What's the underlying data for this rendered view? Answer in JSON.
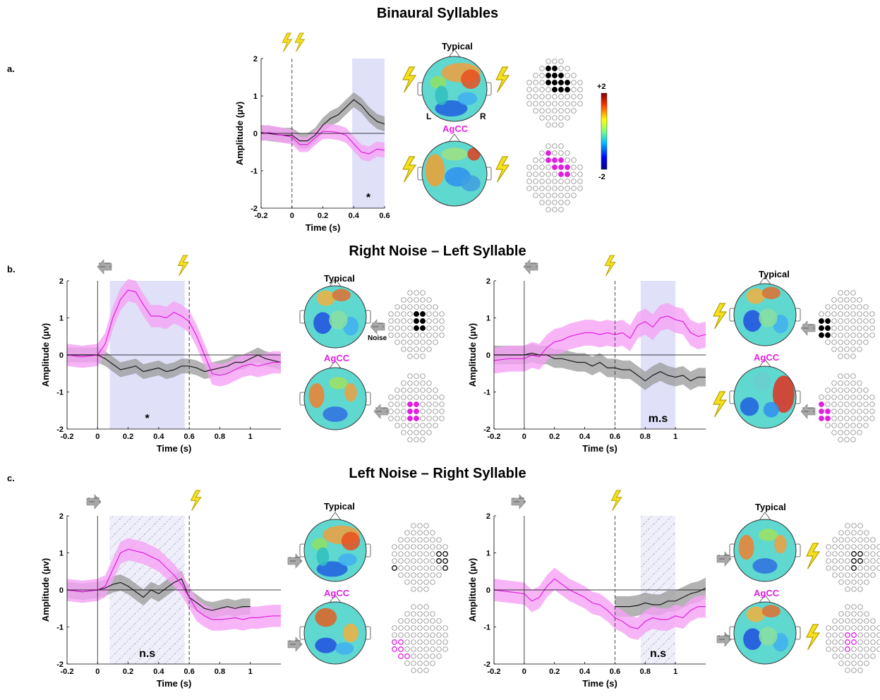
{
  "figure": {
    "section_titles": {
      "a": "Binaural Syllables",
      "b": "Right Noise – Left Syllable",
      "c": "Left Noise – Right Syllable"
    },
    "panel_labels": {
      "a": "a.",
      "b": "b.",
      "c": "c."
    },
    "typical_label": "Typical",
    "agcc_label": "AgCC",
    "left_label": "L",
    "right_label": "R",
    "noise_label": "Noise",
    "colorbar": {
      "max_label": "+2",
      "min_label": "-2"
    },
    "colors": {
      "typical": "#1a1a1a",
      "typical_band": "#9a9a9a",
      "agcc": "#e020e0",
      "agcc_band": "#f5a3f5",
      "window": "#d8d8f8",
      "lightning": "#f5e020"
    }
  },
  "chart_data": [
    {
      "id": "a",
      "type": "line",
      "xlabel": "Time (s)",
      "ylabel": "Amplitude (µv)",
      "xlim": [
        -0.2,
        0.6
      ],
      "ylim": [
        -2,
        2
      ],
      "xticks": [
        "-0.2",
        "0",
        "0.2",
        "0.4",
        "0.6"
      ],
      "yticks": [
        "-2",
        "-1",
        "0",
        "1",
        "2"
      ],
      "x_tick_values": [
        -0.2,
        0,
        0.2,
        0.4,
        0.6
      ],
      "y_tick_values": [
        -2,
        -1,
        0,
        1,
        2
      ],
      "window": [
        0.39,
        0.6
      ],
      "window_style": "solid",
      "significance": "*",
      "onset_lines": [
        {
          "x": 0,
          "style": "dashed"
        }
      ],
      "series": [
        {
          "name": "Typical",
          "x": [
            -0.2,
            -0.15,
            -0.1,
            -0.05,
            0,
            0.05,
            0.1,
            0.15,
            0.2,
            0.25,
            0.3,
            0.35,
            0.4,
            0.45,
            0.5,
            0.55,
            0.6
          ],
          "y": [
            0.02,
            0.0,
            -0.03,
            -0.05,
            -0.05,
            -0.2,
            -0.2,
            -0.05,
            0.22,
            0.4,
            0.5,
            0.7,
            0.9,
            0.75,
            0.5,
            0.32,
            0.25
          ],
          "band": 0.2
        },
        {
          "name": "AgCC",
          "x": [
            -0.2,
            -0.15,
            -0.1,
            -0.05,
            0,
            0.05,
            0.1,
            0.15,
            0.2,
            0.25,
            0.3,
            0.35,
            0.4,
            0.45,
            0.5,
            0.55,
            0.6
          ],
          "y": [
            0.0,
            0.02,
            -0.02,
            -0.06,
            -0.1,
            -0.3,
            -0.3,
            -0.12,
            0.05,
            0.05,
            0.02,
            -0.05,
            -0.28,
            -0.5,
            -0.55,
            -0.42,
            -0.45
          ],
          "band": 0.2
        }
      ]
    },
    {
      "id": "b-left",
      "type": "line",
      "xlabel": "Time (s)",
      "ylabel": "Amplitude (µv)",
      "xlim": [
        -0.2,
        1.2
      ],
      "ylim": [
        -2,
        2
      ],
      "xticks": [
        "-0.2",
        "0",
        "0.2",
        "0.4",
        "0.6",
        "0.8",
        "1"
      ],
      "yticks": [
        "-2",
        "-1",
        "0",
        "1",
        "2"
      ],
      "x_tick_values": [
        -0.2,
        0,
        0.2,
        0.4,
        0.6,
        0.8,
        1.0
      ],
      "y_tick_values": [
        -2,
        -1,
        0,
        1,
        2
      ],
      "window": [
        0.08,
        0.57
      ],
      "window_style": "solid",
      "significance": "*",
      "onset_lines": [
        {
          "x": 0,
          "style": "solid"
        },
        {
          "x": 0.6,
          "style": "dashed"
        }
      ],
      "series": [
        {
          "name": "Typical",
          "x": [
            -0.2,
            -0.1,
            0,
            0.05,
            0.1,
            0.15,
            0.2,
            0.25,
            0.3,
            0.35,
            0.4,
            0.45,
            0.5,
            0.55,
            0.6,
            0.65,
            0.7,
            0.75,
            0.8,
            0.85,
            0.9,
            0.95,
            1.0,
            1.05,
            1.1,
            1.15,
            1.2
          ],
          "y": [
            0.0,
            0.0,
            0.0,
            -0.1,
            -0.25,
            -0.4,
            -0.35,
            -0.3,
            -0.45,
            -0.4,
            -0.35,
            -0.45,
            -0.4,
            -0.3,
            -0.3,
            -0.35,
            -0.45,
            -0.4,
            -0.35,
            -0.3,
            -0.2,
            -0.2,
            -0.1,
            0.0,
            -0.1,
            -0.15,
            -0.2
          ],
          "band": 0.2
        },
        {
          "name": "AgCC",
          "x": [
            -0.2,
            -0.1,
            0,
            0.05,
            0.1,
            0.15,
            0.2,
            0.25,
            0.3,
            0.35,
            0.4,
            0.45,
            0.5,
            0.55,
            0.6,
            0.65,
            0.7,
            0.75,
            0.8,
            0.85,
            0.9,
            0.95,
            1.0,
            1.05,
            1.1,
            1.15,
            1.2
          ],
          "y": [
            0.0,
            -0.05,
            0.0,
            0.3,
            1.0,
            1.5,
            1.75,
            1.7,
            1.35,
            1.05,
            1.05,
            1.0,
            1.15,
            1.05,
            0.9,
            0.5,
            0.0,
            -0.5,
            -0.55,
            -0.5,
            -0.4,
            -0.3,
            -0.25,
            -0.3,
            -0.25,
            -0.2,
            -0.2
          ],
          "band": 0.3
        }
      ]
    },
    {
      "id": "b-right",
      "type": "line",
      "xlabel": "Time (s)",
      "ylabel": "Amplitude (µv)",
      "xlim": [
        -0.2,
        1.2
      ],
      "ylim": [
        -2,
        2
      ],
      "xticks": [
        "-0.2",
        "0",
        "0.2",
        "0.4",
        "0.6",
        "0.8",
        "1"
      ],
      "yticks": [
        "-2",
        "-1",
        "0",
        "1",
        "2"
      ],
      "x_tick_values": [
        -0.2,
        0,
        0.2,
        0.4,
        0.6,
        0.8,
        1.0
      ],
      "y_tick_values": [
        -2,
        -1,
        0,
        1,
        2
      ],
      "window": [
        0.77,
        1.0
      ],
      "window_style": "solid",
      "significance": "m.s",
      "onset_lines": [
        {
          "x": 0,
          "style": "solid"
        },
        {
          "x": 0.6,
          "style": "dashed"
        }
      ],
      "series": [
        {
          "name": "Typical",
          "x": [
            -0.2,
            -0.1,
            0,
            0.05,
            0.1,
            0.15,
            0.2,
            0.25,
            0.3,
            0.35,
            0.4,
            0.45,
            0.5,
            0.55,
            0.6,
            0.65,
            0.7,
            0.75,
            0.8,
            0.85,
            0.9,
            0.95,
            1.0,
            1.05,
            1.1,
            1.15,
            1.2
          ],
          "y": [
            0.0,
            0.0,
            0.0,
            0.05,
            0.0,
            0.0,
            -0.1,
            -0.1,
            -0.15,
            -0.2,
            -0.2,
            -0.3,
            -0.2,
            -0.35,
            -0.35,
            -0.4,
            -0.4,
            -0.55,
            -0.7,
            -0.55,
            -0.45,
            -0.55,
            -0.6,
            -0.55,
            -0.7,
            -0.6,
            -0.6
          ],
          "band": 0.25
        },
        {
          "name": "AgCC",
          "x": [
            -0.2,
            -0.1,
            0,
            0.05,
            0.1,
            0.15,
            0.2,
            0.25,
            0.3,
            0.35,
            0.4,
            0.45,
            0.5,
            0.55,
            0.6,
            0.65,
            0.7,
            0.75,
            0.8,
            0.85,
            0.9,
            0.95,
            1.0,
            1.05,
            1.1,
            1.15,
            1.2
          ],
          "y": [
            -0.15,
            -0.1,
            -0.1,
            0.0,
            -0.05,
            0.2,
            0.35,
            0.4,
            0.5,
            0.55,
            0.6,
            0.6,
            0.55,
            0.6,
            0.55,
            0.6,
            0.45,
            0.8,
            0.9,
            0.75,
            1.0,
            1.05,
            0.95,
            0.9,
            0.6,
            0.5,
            0.55
          ],
          "band": 0.35
        }
      ]
    },
    {
      "id": "c-left",
      "type": "line",
      "xlabel": "Time (s)",
      "ylabel": "Amplitude (µv)",
      "xlim": [
        -0.2,
        1.2
      ],
      "ylim": [
        -2,
        2
      ],
      "xticks": [
        "-0.2",
        "0",
        "0.2",
        "0.4",
        "0.6",
        "0.8",
        "1"
      ],
      "yticks": [
        "-2",
        "-1",
        "0",
        "1",
        "2"
      ],
      "x_tick_values": [
        -0.2,
        0,
        0.2,
        0.4,
        0.6,
        0.8,
        1.0
      ],
      "y_tick_values": [
        -2,
        -1,
        0,
        1,
        2
      ],
      "window": [
        0.08,
        0.57
      ],
      "window_style": "hatched",
      "significance": "n.s",
      "onset_lines": [
        {
          "x": 0,
          "style": "solid"
        },
        {
          "x": 0.6,
          "style": "dashed"
        }
      ],
      "series": [
        {
          "name": "Typical",
          "x": [
            -0.2,
            -0.1,
            0,
            0.05,
            0.1,
            0.15,
            0.2,
            0.25,
            0.3,
            0.35,
            0.4,
            0.45,
            0.5,
            0.55,
            0.6,
            0.65,
            0.7,
            0.75,
            0.8,
            0.85,
            0.9,
            0.95,
            1.0
          ],
          "y": [
            0.0,
            -0.05,
            0.0,
            0.05,
            0.15,
            0.2,
            0.1,
            -0.05,
            -0.2,
            0.0,
            -0.1,
            0.05,
            0.2,
            0.3,
            -0.2,
            -0.35,
            -0.5,
            -0.55,
            -0.5,
            -0.45,
            -0.5,
            -0.45,
            -0.45
          ],
          "band": 0.22
        },
        {
          "name": "AgCC",
          "x": [
            -0.2,
            -0.1,
            0,
            0.05,
            0.1,
            0.15,
            0.2,
            0.25,
            0.3,
            0.35,
            0.4,
            0.45,
            0.5,
            0.55,
            0.6,
            0.65,
            0.7,
            0.75,
            0.8,
            0.85,
            0.9,
            0.95,
            1.0,
            1.05,
            1.1,
            1.15,
            1.2
          ],
          "y": [
            0.0,
            -0.05,
            0.0,
            0.1,
            0.55,
            1.0,
            1.1,
            1.05,
            1.0,
            0.9,
            0.8,
            0.6,
            0.4,
            0.15,
            -0.2,
            -0.55,
            -0.7,
            -0.8,
            -0.8,
            -0.78,
            -0.75,
            -0.8,
            -0.75,
            -0.75,
            -0.72,
            -0.7,
            -0.7
          ],
          "band": 0.3
        }
      ]
    },
    {
      "id": "c-right",
      "type": "line",
      "xlabel": "Time (s)",
      "ylabel": "Amplitude (µv)",
      "xlim": [
        -0.2,
        1.2
      ],
      "ylim": [
        -2,
        2
      ],
      "xticks": [
        "-0.2",
        "0",
        "0.2",
        "0.4",
        "0.6",
        "0.8",
        "1"
      ],
      "yticks": [
        "-2",
        "-1",
        "0",
        "1",
        "2"
      ],
      "x_tick_values": [
        -0.2,
        0,
        0.2,
        0.4,
        0.6,
        0.8,
        1.0
      ],
      "y_tick_values": [
        -2,
        -1,
        0,
        1,
        2
      ],
      "window": [
        0.77,
        1.0
      ],
      "window_style": "hatched",
      "significance": "n.s",
      "onset_lines": [
        {
          "x": 0,
          "style": "solid"
        },
        {
          "x": 0.6,
          "style": "dashed"
        }
      ],
      "series": [
        {
          "name": "Typical",
          "x": [
            0.6,
            0.65,
            0.7,
            0.75,
            0.8,
            0.85,
            0.9,
            0.95,
            1.0,
            1.05,
            1.1,
            1.15,
            1.2
          ],
          "y": [
            -0.45,
            -0.45,
            -0.45,
            -0.42,
            -0.35,
            -0.4,
            -0.4,
            -0.3,
            -0.3,
            -0.2,
            -0.1,
            -0.05,
            0.05
          ],
          "band": 0.28
        },
        {
          "name": "AgCC",
          "x": [
            -0.2,
            -0.1,
            0,
            0.05,
            0.1,
            0.15,
            0.2,
            0.25,
            0.3,
            0.35,
            0.4,
            0.45,
            0.5,
            0.55,
            0.6,
            0.65,
            0.7,
            0.75,
            0.8,
            0.85,
            0.9,
            0.95,
            1.0,
            1.05,
            1.1,
            1.15,
            1.2
          ],
          "y": [
            0.0,
            -0.05,
            -0.1,
            -0.3,
            -0.2,
            0.1,
            0.3,
            0.15,
            0.0,
            -0.1,
            -0.2,
            -0.35,
            -0.4,
            -0.55,
            -0.75,
            -0.85,
            -1.0,
            -1.05,
            -0.85,
            -0.75,
            -0.8,
            -0.8,
            -0.7,
            -0.75,
            -0.55,
            -0.45,
            -0.45
          ],
          "band": 0.3
        }
      ]
    }
  ]
}
